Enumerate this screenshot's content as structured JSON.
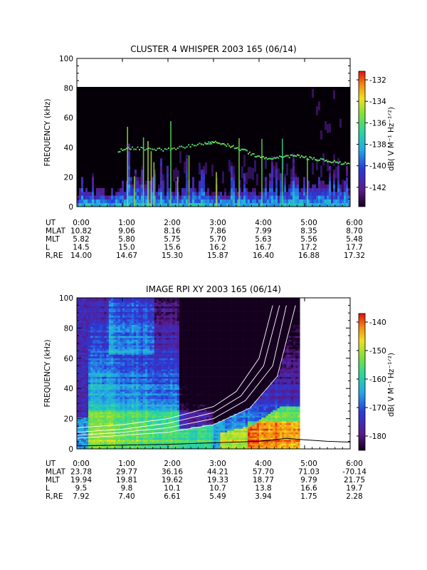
{
  "chart_data": [
    {
      "type": "heatmap",
      "title": "CLUSTER 4 WHISPER 2003 165 (06/14)",
      "ylabel": "FREQUENCY (kHz)",
      "xlim": [
        "0:00",
        "6:00"
      ],
      "ylim": [
        0,
        100
      ],
      "x_ticks": [
        "0:00",
        "1:00",
        "2:00",
        "3:00",
        "4:00",
        "5:00",
        "6:00"
      ],
      "y_ticks": [
        "0",
        "20",
        "40",
        "60",
        "80",
        "100"
      ],
      "data_upper_kHz": 80,
      "colorbar": {
        "label": "dB( V M⁻¹ Hz⁻¹ᐟ²)",
        "ticks": [
          "-132",
          "-134",
          "-136",
          "-138",
          "-140",
          "-142"
        ],
        "range": [
          -143.8,
          -131.2
        ]
      },
      "trace_kHz": [
        {
          "t": 0.9,
          "f": 38
        },
        {
          "t": 1.2,
          "f": 40
        },
        {
          "t": 1.6,
          "f": 39
        },
        {
          "t": 2.0,
          "f": 39
        },
        {
          "t": 2.4,
          "f": 41
        },
        {
          "t": 2.8,
          "f": 43
        },
        {
          "t": 3.0,
          "f": 44
        },
        {
          "t": 3.3,
          "f": 42
        },
        {
          "t": 3.6,
          "f": 39
        },
        {
          "t": 3.9,
          "f": 35
        },
        {
          "t": 4.2,
          "f": 33
        },
        {
          "t": 4.5,
          "f": 34
        },
        {
          "t": 4.8,
          "f": 35
        },
        {
          "t": 5.1,
          "f": 33
        },
        {
          "t": 5.4,
          "f": 32
        },
        {
          "t": 5.7,
          "f": 30
        },
        {
          "t": 6.0,
          "f": 29
        }
      ],
      "table": {
        "rows": [
          {
            "label": "UT",
            "values": [
              "0:00",
              "1:00",
              "2:00",
              "3:00",
              "4:00",
              "5:00",
              "6:00"
            ]
          },
          {
            "label": "MLAT",
            "values": [
              "10.82",
              "9.06",
              "8.16",
              "7.86",
              "7.99",
              "8.35",
              "8.70"
            ]
          },
          {
            "label": "MLT",
            "values": [
              "5.82",
              "5.80",
              "5.75",
              "5.70",
              "5.63",
              "5.56",
              "5.48"
            ]
          },
          {
            "label": "L",
            "values": [
              "14.5",
              "15.0",
              "15.6",
              "16.2",
              "16.7",
              "17.2",
              "17.7"
            ]
          },
          {
            "label": "R,RE",
            "values": [
              "14.00",
              "14.67",
              "15.30",
              "15.87",
              "16.40",
              "16.88",
              "17.32"
            ]
          }
        ]
      }
    },
    {
      "type": "heatmap",
      "title": "IMAGE RPI XY 2003 165 (06/14)",
      "ylabel": "FREQUENCY (kHz)",
      "xlim": [
        "0:00",
        "6:00"
      ],
      "ylim": [
        0,
        100
      ],
      "x_ticks": [
        "0:00",
        "1:00",
        "2:00",
        "3:00",
        "4:00",
        "5:00",
        "6:00"
      ],
      "y_ticks": [
        "0",
        "20",
        "40",
        "60",
        "80",
        "100"
      ],
      "data_end_ut": 4.9,
      "colorbar": {
        "label": "dB( V M⁻¹ Hz⁻¹ᐟ²)",
        "ticks": [
          "-140",
          "-150",
          "-160",
          "-170",
          "-180"
        ],
        "range": [
          -185,
          -137
        ]
      },
      "curves_kHz": [
        {
          "points": [
            {
              "t": 0,
              "f": 14
            },
            {
              "t": 1,
              "f": 16
            },
            {
              "t": 2,
              "f": 20
            },
            {
              "t": 3,
              "f": 28
            },
            {
              "t": 3.5,
              "f": 38
            },
            {
              "t": 4.0,
              "f": 60
            },
            {
              "t": 4.3,
              "f": 95
            }
          ]
        },
        {
          "points": [
            {
              "t": 0,
              "f": 11
            },
            {
              "t": 1,
              "f": 13
            },
            {
              "t": 2,
              "f": 17
            },
            {
              "t": 3,
              "f": 24
            },
            {
              "t": 3.6,
              "f": 35
            },
            {
              "t": 4.1,
              "f": 55
            },
            {
              "t": 4.45,
              "f": 95
            }
          ]
        },
        {
          "points": [
            {
              "t": 0,
              "f": 9
            },
            {
              "t": 1,
              "f": 11
            },
            {
              "t": 2,
              "f": 14
            },
            {
              "t": 3,
              "f": 20
            },
            {
              "t": 3.7,
              "f": 32
            },
            {
              "t": 4.3,
              "f": 55
            },
            {
              "t": 4.6,
              "f": 95
            }
          ]
        },
        {
          "points": [
            {
              "t": 0,
              "f": 7
            },
            {
              "t": 1,
              "f": 9
            },
            {
              "t": 2,
              "f": 11
            },
            {
              "t": 3,
              "f": 16
            },
            {
              "t": 3.8,
              "f": 27
            },
            {
              "t": 4.4,
              "f": 48
            },
            {
              "t": 4.8,
              "f": 95
            }
          ]
        }
      ],
      "plasma_line_kHz": [
        {
          "t": 0,
          "f": 2
        },
        {
          "t": 2,
          "f": 3
        },
        {
          "t": 3,
          "f": 4
        },
        {
          "t": 4,
          "f": 5
        },
        {
          "t": 4.6,
          "f": 7
        },
        {
          "t": 5.0,
          "f": 6
        },
        {
          "t": 5.5,
          "f": 5
        },
        {
          "t": 6.0,
          "f": 4.5
        }
      ],
      "table": {
        "rows": [
          {
            "label": "UT",
            "values": [
              "0:00",
              "1:00",
              "2:00",
              "3:00",
              "4:00",
              "5:00",
              "6:00"
            ]
          },
          {
            "label": "MLAT",
            "values": [
              "23.78",
              "29.77",
              "36.16",
              "44.21",
              "57.70",
              "71.03",
              "-70.14"
            ]
          },
          {
            "label": "MLT",
            "values": [
              "19.94",
              "19.81",
              "19.62",
              "19.33",
              "18.77",
              "9.79",
              "21.75"
            ]
          },
          {
            "label": "L",
            "values": [
              "9.5",
              "9.8",
              "10.1",
              "10.7",
              "13.8",
              "16.6",
              "19.7"
            ]
          },
          {
            "label": "R,RE",
            "values": [
              "7.92",
              "7.40",
              "6.61",
              "5.49",
              "3.94",
              "1.75",
              "2.28"
            ]
          }
        ]
      }
    }
  ]
}
